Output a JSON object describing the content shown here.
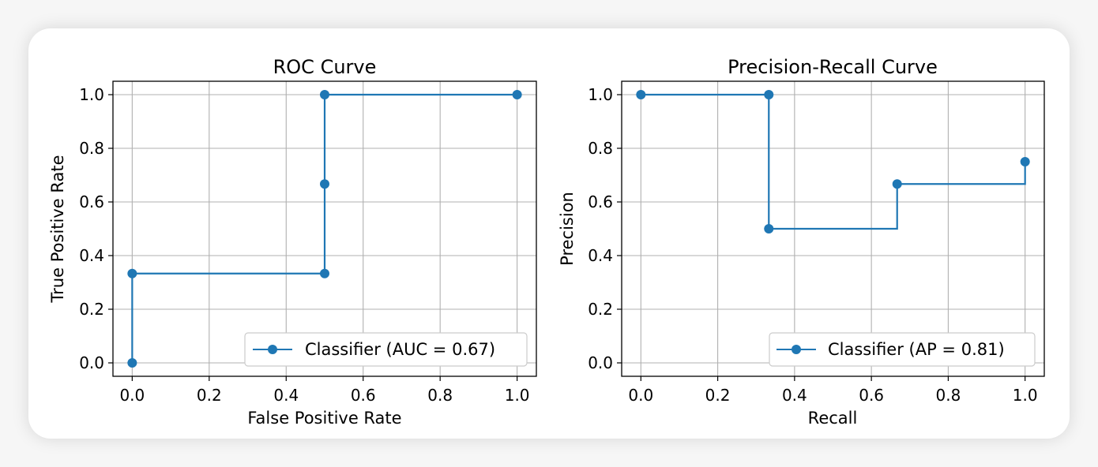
{
  "colors": {
    "series": "#1f77b4",
    "grid": "#b0b0b0",
    "axis": "#000000",
    "legend_border": "#cccccc"
  },
  "chart_data": [
    {
      "type": "line",
      "step": "post",
      "title": "ROC Curve",
      "xlabel": "False Positive Rate",
      "ylabel": "True Positive Rate",
      "xlim": [
        -0.05,
        1.05
      ],
      "ylim": [
        -0.05,
        1.05
      ],
      "xticks": [
        "0.0",
        "0.2",
        "0.4",
        "0.6",
        "0.8",
        "1.0"
      ],
      "yticks": [
        "0.0",
        "0.2",
        "0.4",
        "0.6",
        "0.8",
        "1.0"
      ],
      "grid": true,
      "legend_position": "lower-right",
      "series": [
        {
          "name": "Classifier (AUC = 0.67)",
          "x": [
            0.0,
            0.0,
            0.5,
            0.5,
            0.5,
            1.0
          ],
          "y": [
            0.0,
            0.333,
            0.333,
            0.667,
            1.0,
            1.0
          ]
        }
      ]
    },
    {
      "type": "line",
      "step": "pre",
      "title": "Precision-Recall Curve",
      "xlabel": "Recall",
      "ylabel": "Precision",
      "xlim": [
        -0.05,
        1.05
      ],
      "ylim": [
        -0.05,
        1.05
      ],
      "xticks": [
        "0.0",
        "0.2",
        "0.4",
        "0.6",
        "0.8",
        "1.0"
      ],
      "yticks": [
        "0.0",
        "0.2",
        "0.4",
        "0.6",
        "0.8",
        "1.0"
      ],
      "grid": true,
      "legend_position": "lower-right",
      "series": [
        {
          "name": "Classifier (AP = 0.81)",
          "x": [
            1.0,
            0.667,
            0.333,
            0.333,
            0.0
          ],
          "y": [
            0.75,
            0.667,
            0.5,
            1.0,
            1.0
          ]
        }
      ]
    }
  ]
}
